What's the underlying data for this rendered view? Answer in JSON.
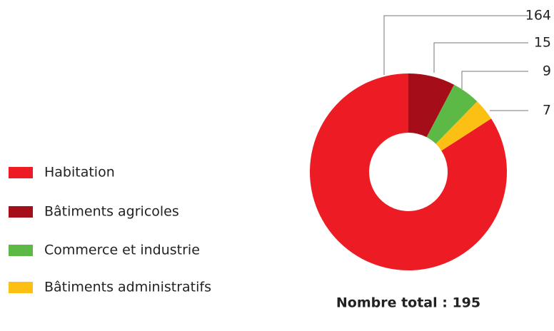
{
  "chart_data": {
    "type": "donut",
    "categories": [
      "Habitation",
      "Bâtiments agricoles",
      "Commerce et industrie",
      "Bâtiments administratifs"
    ],
    "values": [
      164,
      15,
      9,
      7
    ],
    "colors": [
      "#ed1c24",
      "#a50d18",
      "#5cb946",
      "#fcc015"
    ],
    "total_label": "Nombre total : 195"
  }
}
